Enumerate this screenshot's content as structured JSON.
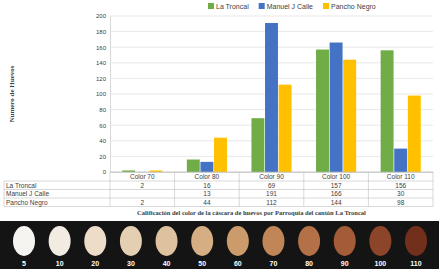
{
  "chart_data": {
    "type": "bar",
    "x_label": "Calificación del color de la cáscara de huevos por Parroquia del cantón La Troncal",
    "y_label": "Numero de Huevos",
    "categories": [
      "Color 70",
      "Color 80",
      "Color 90",
      "Color 100",
      "Color 110"
    ],
    "series": [
      {
        "name": "La Troncal",
        "color": "#70ad47",
        "values": [
          2,
          16,
          69,
          157,
          156
        ]
      },
      {
        "name": "Manuel J Calle",
        "color": "#4472c4",
        "values": [
          null,
          13,
          191,
          166,
          30
        ]
      },
      {
        "name": "Pancho Negro",
        "color": "#ffc000",
        "values": [
          2,
          44,
          112,
          144,
          98
        ]
      }
    ],
    "ylim": [
      0,
      200
    ],
    "yticks": [
      0,
      20,
      40,
      60,
      80,
      100,
      120,
      140,
      160,
      180,
      200
    ],
    "grid": true,
    "legend": "top"
  },
  "egg_color_scale": {
    "values": [
      5,
      10,
      20,
      30,
      40,
      50,
      60,
      70,
      80,
      90,
      100,
      110
    ]
  }
}
